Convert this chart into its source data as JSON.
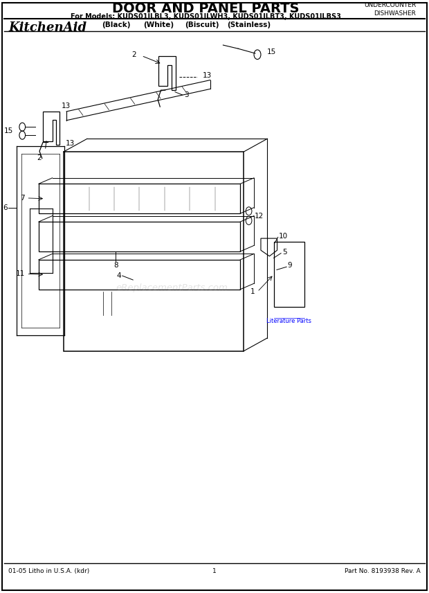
{
  "title": "DOOR AND PANEL PARTS",
  "subtitle": "For Models: KUDS01ILBL3, KUDS01ILWH3, KUDS01ILBT3, KUDS01ILBS3",
  "brand": "KitchenAid",
  "model_variants": [
    "(Black)",
    "(White)",
    "(Biscuit)",
    "(Stainless)"
  ],
  "top_right_line1": "UNDERCOUNTER",
  "top_right_line2": "DISHWASHER",
  "footer_left": "01-05 Litho in U.S.A. (kdr)",
  "footer_center": "1",
  "footer_right": "Part No. 8193938 Rev. A",
  "watermark": "eReplacementParts.com",
  "bg_color": "#ffffff",
  "line_color": "#000000"
}
